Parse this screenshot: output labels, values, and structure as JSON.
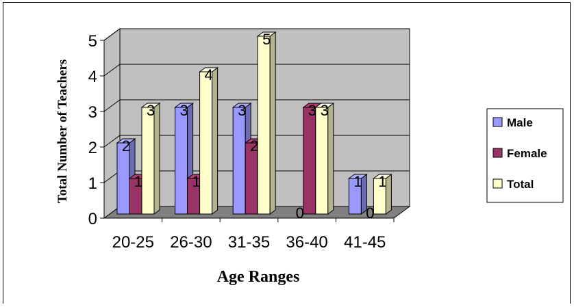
{
  "chart_data": {
    "type": "bar",
    "title": "",
    "xlabel": "Age Ranges",
    "ylabel": "Total Number of Teachers",
    "categories": [
      "20-25",
      "26-30",
      "31-35",
      "36-40",
      "41-45"
    ],
    "series": [
      {
        "name": "Male",
        "values": [
          2,
          3,
          3,
          0,
          1
        ],
        "color": "#9999ff"
      },
      {
        "name": "Female",
        "values": [
          1,
          1,
          2,
          3,
          0
        ],
        "color": "#993366"
      },
      {
        "name": "Total",
        "values": [
          3,
          4,
          5,
          3,
          1
        ],
        "color": "#ffffcc"
      }
    ],
    "ylim": [
      0,
      5
    ],
    "yticks": [
      0,
      1,
      2,
      3,
      4,
      5
    ],
    "grid": true,
    "legend": "right",
    "colors": {
      "wall": "#c0c0c0",
      "floor": "#808080"
    }
  }
}
